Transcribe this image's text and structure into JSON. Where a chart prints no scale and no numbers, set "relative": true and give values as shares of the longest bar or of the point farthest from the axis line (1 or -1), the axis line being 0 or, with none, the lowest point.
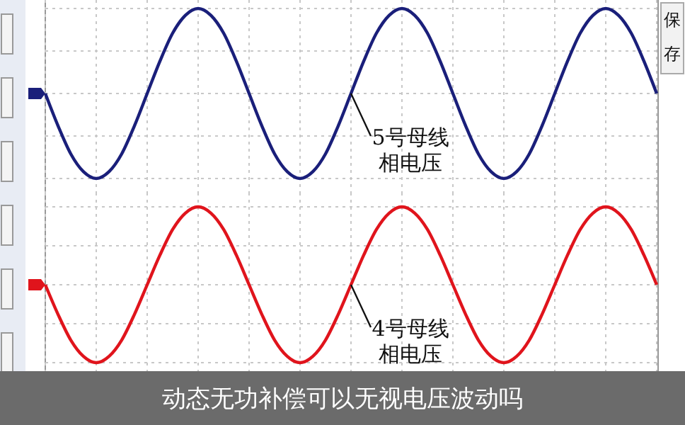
{
  "chart_data": [
    {
      "type": "line",
      "relative": true,
      "grid": true,
      "categories": [
        null,
        null,
        null,
        null,
        null,
        null,
        null,
        null,
        null,
        null,
        null,
        null,
        null,
        null,
        null,
        null,
        null,
        null,
        null,
        null,
        null,
        null,
        null,
        null,
        null,
        null,
        null,
        null,
        null,
        null,
        null,
        null,
        null,
        null,
        null,
        null,
        null,
        null,
        null,
        null,
        null,
        null,
        null,
        null,
        null,
        null,
        null,
        null,
        null
      ],
      "series": [
        {
          "color": "#1a1f7a",
          "values": [
            0,
            -0.38,
            -0.71,
            -0.92,
            -1,
            -0.92,
            -0.71,
            -0.38,
            0,
            0.38,
            0.71,
            0.92,
            1,
            0.92,
            0.71,
            0.38,
            0,
            -0.38,
            -0.71,
            -0.92,
            -1,
            -0.92,
            -0.71,
            -0.38,
            0,
            0.38,
            0.71,
            0.92,
            1,
            0.92,
            0.71,
            0.38,
            0,
            -0.38,
            -0.71,
            -0.92,
            -1,
            -0.92,
            -0.71,
            -0.38,
            0,
            0.38,
            0.71,
            0.92,
            1,
            0.92,
            0.71,
            0.38,
            0
          ]
        }
      ],
      "annotations": [
        "5号母线相电压",
        "保存"
      ]
    },
    {
      "type": "line",
      "relative": true,
      "grid": true,
      "categories": [
        null,
        null,
        null,
        null,
        null,
        null,
        null,
        null,
        null,
        null,
        null,
        null,
        null,
        null,
        null,
        null,
        null,
        null,
        null,
        null,
        null,
        null,
        null,
        null,
        null,
        null,
        null,
        null,
        null,
        null,
        null,
        null,
        null,
        null,
        null,
        null,
        null,
        null,
        null,
        null,
        null,
        null,
        null,
        null,
        null,
        null,
        null,
        null,
        null
      ],
      "series": [
        {
          "color": "#e0141c",
          "values": [
            0,
            -0.38,
            -0.71,
            -0.92,
            -1,
            -0.92,
            -0.71,
            -0.38,
            0,
            0.38,
            0.71,
            0.92,
            1,
            0.92,
            0.71,
            0.38,
            0,
            -0.38,
            -0.71,
            -0.92,
            -1,
            -0.92,
            -0.71,
            -0.38,
            0,
            0.38,
            0.71,
            0.92,
            1,
            0.92,
            0.71,
            0.38,
            0,
            -0.38,
            -0.71,
            -0.92,
            -1,
            -0.92,
            -0.71,
            -0.38,
            0,
            0.38,
            0.71,
            0.92,
            1,
            0.92,
            0.71,
            0.38,
            0
          ]
        }
      ],
      "annotations": [
        "4号母线相电压",
        "动态无功补偿可以无视电压波动吗"
      ]
    }
  ]
}
